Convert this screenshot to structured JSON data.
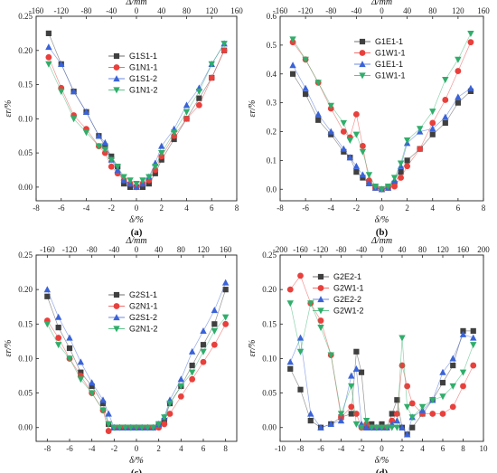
{
  "chart_data": [
    {
      "type": "line",
      "panel": "(a)",
      "xlabel": "δ/%",
      "ylabel": "εr/%",
      "top_xlabel": "Δ/mm",
      "xlim": [
        -8,
        8
      ],
      "ylim": [
        -0.02,
        0.25
      ],
      "xticks": [
        -8,
        -6,
        -4,
        -2,
        0,
        2,
        4,
        6,
        8
      ],
      "yticks": [
        0.0,
        0.05,
        0.1,
        0.15,
        0.2,
        0.25
      ],
      "top_ticks": [
        -160,
        -120,
        -80,
        -40,
        0,
        40,
        80,
        120,
        160
      ],
      "top_scale": 20,
      "legend_position": "top-center",
      "series": [
        {
          "name": "G1S1-1",
          "color": "#404040",
          "marker": "square",
          "x": [
            -7,
            -6,
            -5,
            -4,
            -3,
            -2.5,
            -2,
            -1.5,
            -1,
            -0.5,
            0,
            0.5,
            1,
            1.5,
            2,
            3,
            4,
            5,
            6,
            7
          ],
          "y": [
            0.225,
            0.18,
            0.14,
            0.11,
            0.075,
            0.06,
            0.045,
            0.03,
            0.005,
            0.0,
            0.0,
            0.0,
            0.005,
            0.02,
            0.04,
            0.07,
            0.1,
            0.13,
            0.16,
            0.2
          ]
        },
        {
          "name": "G1N1-1",
          "color": "#e8403c",
          "marker": "circle",
          "x": [
            -7,
            -6,
            -5,
            -4,
            -3,
            -2.5,
            -2,
            -1.5,
            -1,
            -0.5,
            0,
            0.5,
            1,
            1.5,
            2,
            3,
            4,
            5,
            6,
            7
          ],
          "y": [
            0.19,
            0.145,
            0.105,
            0.085,
            0.06,
            0.05,
            0.03,
            0.02,
            0.01,
            0.005,
            0.0,
            0.005,
            0.01,
            0.025,
            0.045,
            0.075,
            0.1,
            0.12,
            0.16,
            0.2
          ]
        },
        {
          "name": "G1S1-2",
          "color": "#3a63d8",
          "marker": "triangle-up",
          "x": [
            -7,
            -6,
            -5,
            -4,
            -3,
            -2.5,
            -2,
            -1.5,
            -1,
            -0.5,
            0,
            0.5,
            1,
            1.5,
            2,
            3,
            4,
            5,
            6,
            7
          ],
          "y": [
            0.205,
            0.18,
            0.14,
            0.11,
            0.075,
            0.065,
            0.04,
            0.025,
            0.01,
            0.005,
            0.0,
            0.005,
            0.015,
            0.035,
            0.06,
            0.085,
            0.12,
            0.145,
            0.18,
            0.21
          ]
        },
        {
          "name": "G1N1-2",
          "color": "#2fae6a",
          "marker": "triangle-down",
          "x": [
            -7,
            -6,
            -5,
            -4,
            -3,
            -2.5,
            -2,
            -1.5,
            -1,
            -0.5,
            0,
            0.5,
            1,
            1.5,
            2,
            3,
            4,
            5,
            6,
            7
          ],
          "y": [
            0.18,
            0.14,
            0.1,
            0.08,
            0.06,
            0.055,
            0.04,
            0.03,
            0.015,
            0.01,
            0.005,
            0.01,
            0.015,
            0.03,
            0.05,
            0.08,
            0.11,
            0.14,
            0.18,
            0.21
          ]
        }
      ]
    },
    {
      "type": "line",
      "panel": "(b)",
      "xlabel": "δ/%",
      "ylabel": "εr/%",
      "top_xlabel": "Δ/mm",
      "xlim": [
        -8,
        8
      ],
      "ylim": [
        -0.04,
        0.6
      ],
      "xticks": [
        -8,
        -6,
        -4,
        -2,
        0,
        2,
        4,
        6,
        8
      ],
      "yticks": [
        0.0,
        0.1,
        0.2,
        0.3,
        0.4,
        0.5,
        0.6
      ],
      "top_ticks": [
        -160,
        -120,
        -80,
        -40,
        0,
        40,
        80,
        120,
        160
      ],
      "top_scale": 20,
      "legend_position": "top-center",
      "series": [
        {
          "name": "G1E1-1",
          "color": "#404040",
          "marker": "square",
          "x": [
            -7,
            -6,
            -5,
            -4,
            -3,
            -2.5,
            -2,
            -1.5,
            -1,
            -0.5,
            0,
            0.5,
            1,
            1.5,
            2,
            3,
            4,
            5,
            6,
            7
          ],
          "y": [
            0.4,
            0.33,
            0.24,
            0.19,
            0.13,
            0.11,
            0.06,
            0.04,
            0.02,
            0.005,
            0.0,
            0.005,
            0.02,
            0.06,
            0.1,
            0.14,
            0.19,
            0.23,
            0.3,
            0.34
          ]
        },
        {
          "name": "G1W1-1",
          "color": "#e8403c",
          "marker": "circle",
          "x": [
            -7,
            -6,
            -5,
            -4,
            -3,
            -2.5,
            -2,
            -1.5,
            -1,
            -0.5,
            0,
            0.5,
            1,
            1.5,
            2,
            3,
            4,
            5,
            6,
            7
          ],
          "y": [
            0.51,
            0.45,
            0.37,
            0.28,
            0.2,
            0.18,
            0.26,
            0.15,
            0.03,
            0.005,
            0.0,
            0.005,
            0.01,
            0.04,
            0.08,
            0.14,
            0.23,
            0.31,
            0.41,
            0.51
          ]
        },
        {
          "name": "G1E1-1",
          "color": "#3a63d8",
          "marker": "triangle-up",
          "x": [
            -7,
            -6,
            -5,
            -4,
            -3,
            -2.5,
            -2,
            -1.5,
            -1,
            -0.5,
            0,
            0.5,
            1,
            1.5,
            2,
            3,
            4,
            5,
            6,
            7
          ],
          "y": [
            0.43,
            0.35,
            0.26,
            0.2,
            0.14,
            0.11,
            0.08,
            0.05,
            0.02,
            0.005,
            0.0,
            0.005,
            0.03,
            0.08,
            0.16,
            0.2,
            0.21,
            0.25,
            0.32,
            0.35
          ]
        },
        {
          "name": "G1W1-1",
          "color": "#2fae6a",
          "marker": "triangle-down",
          "x": [
            -7,
            -6,
            -5,
            -4,
            -3,
            -2.5,
            -2,
            -1.5,
            -1,
            -0.5,
            0,
            0.5,
            1,
            1.5,
            2,
            3,
            4,
            5,
            6,
            7
          ],
          "y": [
            0.52,
            0.45,
            0.37,
            0.29,
            0.23,
            0.17,
            0.19,
            0.13,
            0.05,
            0.01,
            0.0,
            0.01,
            0.04,
            0.09,
            0.17,
            0.21,
            0.27,
            0.38,
            0.45,
            0.54
          ]
        }
      ]
    },
    {
      "type": "line",
      "panel": "(c)",
      "xlabel": "δ/%",
      "ylabel": "εr/%",
      "top_xlabel": "Δ/mm",
      "xlim": [
        -9,
        9
      ],
      "ylim": [
        -0.02,
        0.25
      ],
      "xticks": [
        -8,
        -6,
        -4,
        -2,
        0,
        2,
        4,
        6,
        8
      ],
      "yticks": [
        0.0,
        0.05,
        0.1,
        0.15,
        0.2,
        0.25
      ],
      "top_ticks": [
        -160,
        -120,
        -80,
        -40,
        0,
        40,
        80,
        120,
        160
      ],
      "top_scale": 20,
      "legend_position": "top-center",
      "series": [
        {
          "name": "G2S1-1",
          "color": "#404040",
          "marker": "square",
          "x": [
            -8,
            -7,
            -6,
            -5,
            -4,
            -3,
            -2.5,
            -2,
            -1.5,
            -1,
            -0.5,
            0,
            0.5,
            1,
            1.5,
            2,
            2.5,
            3,
            4,
            5,
            6,
            7,
            8
          ],
          "y": [
            0.19,
            0.145,
            0.115,
            0.08,
            0.06,
            0.035,
            0.005,
            0.0,
            0.0,
            0.0,
            0.0,
            0.0,
            0.0,
            0.0,
            0.0,
            0.005,
            0.01,
            0.035,
            0.06,
            0.09,
            0.12,
            0.15,
            0.2
          ]
        },
        {
          "name": "G2N1-1",
          "color": "#e8403c",
          "marker": "circle",
          "x": [
            -8,
            -7,
            -6,
            -5,
            -4,
            -3,
            -2.5,
            -2,
            -1.5,
            -1,
            -0.5,
            0,
            0.5,
            1,
            1.5,
            2,
            2.5,
            3,
            4,
            5,
            6,
            7,
            8
          ],
          "y": [
            0.155,
            0.13,
            0.1,
            0.075,
            0.05,
            0.025,
            -0.005,
            0.0,
            0.0,
            0.0,
            0.0,
            0.0,
            0.0,
            0.0,
            0.0,
            0.0,
            0.005,
            0.02,
            0.045,
            0.07,
            0.095,
            0.12,
            0.15
          ]
        },
        {
          "name": "G2S1-2",
          "color": "#3a63d8",
          "marker": "triangle-up",
          "x": [
            -8,
            -7,
            -6,
            -5,
            -4,
            -3,
            -2.5,
            -2,
            -1.5,
            -1,
            -0.5,
            0,
            0.5,
            1,
            1.5,
            2,
            2.5,
            3,
            4,
            5,
            6,
            7,
            8
          ],
          "y": [
            0.2,
            0.16,
            0.13,
            0.095,
            0.065,
            0.04,
            0.02,
            0.0,
            0.0,
            0.0,
            0.0,
            0.0,
            0.0,
            0.0,
            0.0,
            0.005,
            0.015,
            0.04,
            0.07,
            0.11,
            0.14,
            0.17,
            0.21
          ]
        },
        {
          "name": "G2N1-2",
          "color": "#2fae6a",
          "marker": "triangle-down",
          "x": [
            -8,
            -7,
            -6,
            -5,
            -4,
            -3,
            -2.5,
            -2,
            -1.5,
            -1,
            -0.5,
            0,
            0.5,
            1,
            1.5,
            2,
            2.5,
            3,
            4,
            5,
            6,
            7,
            8
          ],
          "y": [
            0.15,
            0.12,
            0.1,
            0.07,
            0.05,
            0.025,
            0.005,
            0.0,
            0.0,
            0.0,
            0.0,
            0.0,
            0.0,
            0.0,
            0.0,
            0.005,
            0.015,
            0.035,
            0.06,
            0.08,
            0.11,
            0.14,
            0.16
          ]
        }
      ]
    },
    {
      "type": "line",
      "panel": "(d)",
      "xlabel": "δ/%",
      "ylabel": "εr/%",
      "top_xlabel": "Δ/mm",
      "xlim": [
        -10,
        10
      ],
      "ylim": [
        -0.02,
        0.25
      ],
      "xticks": [
        -10,
        -8,
        -6,
        -4,
        -2,
        0,
        2,
        4,
        6,
        8,
        10
      ],
      "yticks": [
        0.0,
        0.05,
        0.1,
        0.15,
        0.2,
        0.25
      ],
      "top_ticks": [
        -200,
        -160,
        -120,
        -80,
        -40,
        0,
        40,
        80,
        120,
        160,
        200
      ],
      "top_scale": 20,
      "legend_position": "top-left",
      "series": [
        {
          "name": "G2E2-1",
          "color": "#404040",
          "marker": "square",
          "x": [
            -9,
            -8,
            -7,
            -6,
            -5,
            -4,
            -3,
            -2.5,
            -2,
            -1.5,
            -1,
            -0.5,
            0,
            0.5,
            1,
            1.5,
            2,
            2.5,
            3,
            4,
            5,
            6,
            7,
            8,
            9
          ],
          "y": [
            0.085,
            0.055,
            0.01,
            0.0,
            0.005,
            0.015,
            0.02,
            0.11,
            0.08,
            0.0,
            0.005,
            0.0,
            0.005,
            0.0,
            0.02,
            0.04,
            0.0,
            -0.01,
            0.0,
            0.02,
            0.04,
            0.065,
            0.09,
            0.14,
            0.14
          ]
        },
        {
          "name": "G2W1-1",
          "color": "#e8403c",
          "marker": "circle",
          "x": [
            -9,
            -8,
            -7,
            -6,
            -5,
            -4,
            -3,
            -2.5,
            -2,
            -1.5,
            -1,
            -0.5,
            0,
            0.5,
            1,
            1.5,
            2,
            2.5,
            3,
            4,
            5,
            6,
            7,
            8,
            9
          ],
          "y": [
            0.2,
            0.22,
            0.18,
            0.155,
            0.105,
            0.015,
            0.03,
            0.02,
            0.0,
            0.005,
            0.0,
            0.0,
            0.0,
            0.0,
            0.01,
            0.02,
            0.09,
            0.06,
            0.035,
            0.02,
            0.02,
            0.02,
            0.03,
            0.06,
            0.09
          ]
        },
        {
          "name": "G2E2-2",
          "color": "#3a63d8",
          "marker": "triangle-up",
          "x": [
            -9,
            -8,
            -7,
            -6,
            -5,
            -4,
            -3,
            -2.5,
            -2,
            -1.5,
            -1,
            -0.5,
            0,
            0.5,
            1,
            1.5,
            2,
            2.5,
            3,
            4,
            5,
            6,
            7,
            8,
            9
          ],
          "y": [
            0.095,
            0.13,
            0.02,
            0.0,
            0.005,
            0.01,
            0.075,
            0.085,
            0.005,
            0.0,
            0.0,
            0.0,
            0.0,
            0.0,
            0.005,
            0.01,
            0.0,
            -0.01,
            0.015,
            0.025,
            0.04,
            0.08,
            0.1,
            0.135,
            0.13
          ]
        },
        {
          "name": "G2W1-2",
          "color": "#2fae6a",
          "marker": "triangle-down",
          "x": [
            -9,
            -8,
            -7,
            -6,
            -5,
            -4,
            -3,
            -2.5,
            -2,
            -1.5,
            -1,
            -0.5,
            0,
            0.5,
            1,
            1.5,
            2,
            2.5,
            3,
            4,
            5,
            6,
            7,
            8,
            9
          ],
          "y": [
            0.18,
            0.11,
            0.18,
            0.145,
            0.105,
            0.02,
            0.06,
            0.005,
            0.0,
            0.01,
            0.0,
            0.0,
            0.0,
            0.0,
            0.0,
            0.0,
            0.13,
            0.03,
            0.015,
            0.03,
            0.04,
            0.045,
            0.06,
            0.08,
            0.12
          ]
        }
      ]
    }
  ]
}
